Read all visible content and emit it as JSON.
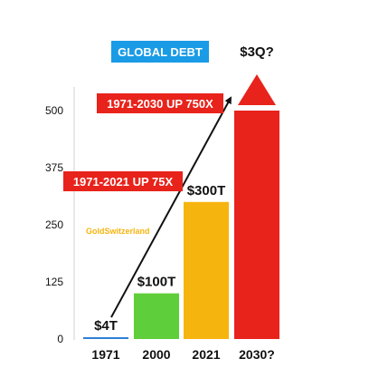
{
  "chart_data": {
    "type": "bar",
    "title": "GLOBAL DEBT",
    "categories": [
      "1971",
      "2000",
      "2021",
      "2030?"
    ],
    "values": [
      4,
      100,
      300,
      500
    ],
    "value_unit": "trillion USD",
    "data_labels": [
      "$4T",
      "$100T",
      "$300T",
      "$3Q?"
    ],
    "colors": [
      "#2f7fd6",
      "#5fce3b",
      "#f6b40e",
      "#e8231b"
    ],
    "yticks": [
      0,
      125,
      250,
      375,
      500
    ],
    "ylim": [
      0,
      500
    ],
    "grid": false,
    "legend": "none",
    "annotations": [
      {
        "text": "1971-2030 UP 750X",
        "color": "#e8231b"
      },
      {
        "text": "1971-2021 UP 75X",
        "color": "#e8231b"
      }
    ],
    "last_bar_overflows_axis": true,
    "trend_arrow": {
      "from_category": "1971",
      "to_category": "2030?"
    }
  },
  "watermark": {
    "text": "GoldSwitzerland",
    "color": "#f6b40e"
  },
  "title_color": "#1a9be6"
}
